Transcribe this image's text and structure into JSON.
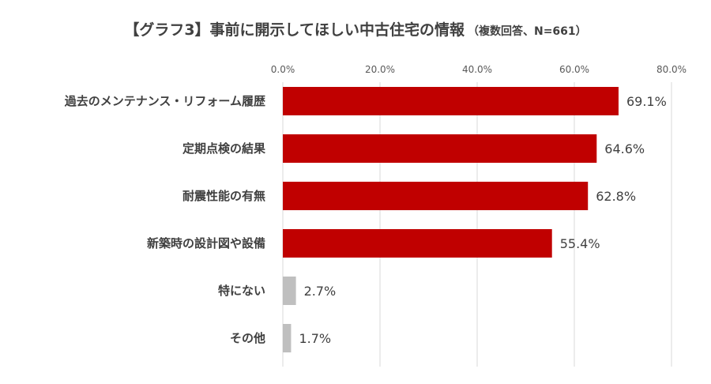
{
  "chart_data": {
    "type": "bar",
    "orientation": "horizontal",
    "title": "【グラフ3】事前に開示してほしい中古住宅の情報",
    "subtitle": "（複数回答、N=661）",
    "categories": [
      "過去のメンテナンス・リフォーム履歴",
      "定期点検の結果",
      "耐震性能の有無",
      "新築時の設計図や設備",
      "特にない",
      "その他"
    ],
    "values": [
      69.1,
      64.6,
      62.8,
      55.4,
      2.7,
      1.7
    ],
    "value_labels": [
      "69.1%",
      "64.6%",
      "62.8%",
      "55.4%",
      "2.7%",
      "1.7%"
    ],
    "bar_colors": [
      "#c00000",
      "#c00000",
      "#c00000",
      "#c00000",
      "#bfbfbf",
      "#bfbfbf"
    ],
    "xlim": [
      0,
      80
    ],
    "x_ticks": [
      0,
      20,
      40,
      60,
      80
    ],
    "x_tick_labels": [
      "0.0%",
      "20.0%",
      "40.0%",
      "60.0%",
      "80.0%"
    ],
    "x_axis_position": "top",
    "grid": true,
    "legend": "none"
  }
}
